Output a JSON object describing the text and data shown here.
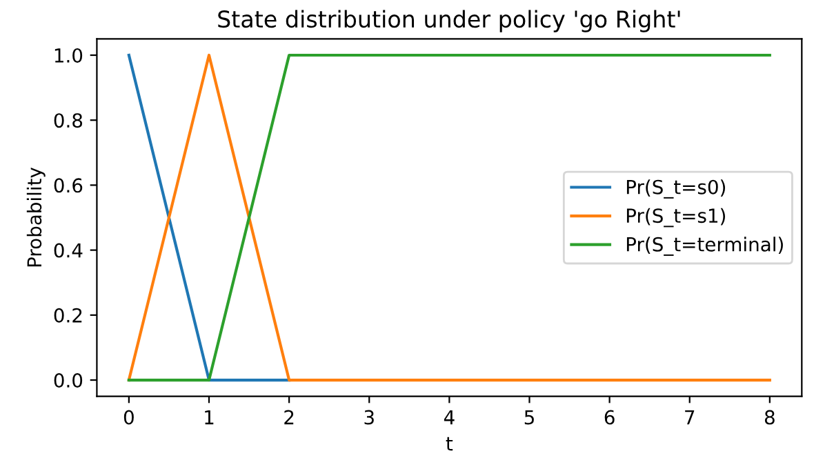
{
  "chart_data": {
    "type": "line",
    "title": "State distribution under policy 'go Right'",
    "xlabel": "t",
    "ylabel": "Probability",
    "x": [
      0,
      1,
      2,
      3,
      4,
      5,
      6,
      7,
      8
    ],
    "series": [
      {
        "name": "Pr(S_t=s0)",
        "color": "#1f77b4",
        "values": [
          1,
          0,
          0,
          null,
          null,
          null,
          null,
          null,
          null
        ]
      },
      {
        "name": "Pr(S_t=s1)",
        "color": "#ff7f0e",
        "values": [
          0,
          1,
          0,
          0,
          0,
          0,
          0,
          0,
          0
        ]
      },
      {
        "name": "Pr(S_t=terminal)",
        "color": "#2ca02c",
        "values": [
          0,
          0,
          1,
          1,
          1,
          1,
          1,
          1,
          1
        ]
      }
    ],
    "xlim": [
      -0.4,
      8.4
    ],
    "ylim": [
      -0.05,
      1.05
    ],
    "xticks": [
      0,
      1,
      2,
      3,
      4,
      5,
      6,
      7,
      8
    ],
    "yticks": [
      {
        "value": 0,
        "label": "0.0"
      },
      {
        "value": 0.2,
        "label": "0.2"
      },
      {
        "value": 0.4,
        "label": "0.4"
      },
      {
        "value": 0.6,
        "label": "0.6"
      },
      {
        "value": 0.8,
        "label": "0.8"
      },
      {
        "value": 1,
        "label": "1.0"
      }
    ],
    "legend": "right",
    "grid": false
  }
}
